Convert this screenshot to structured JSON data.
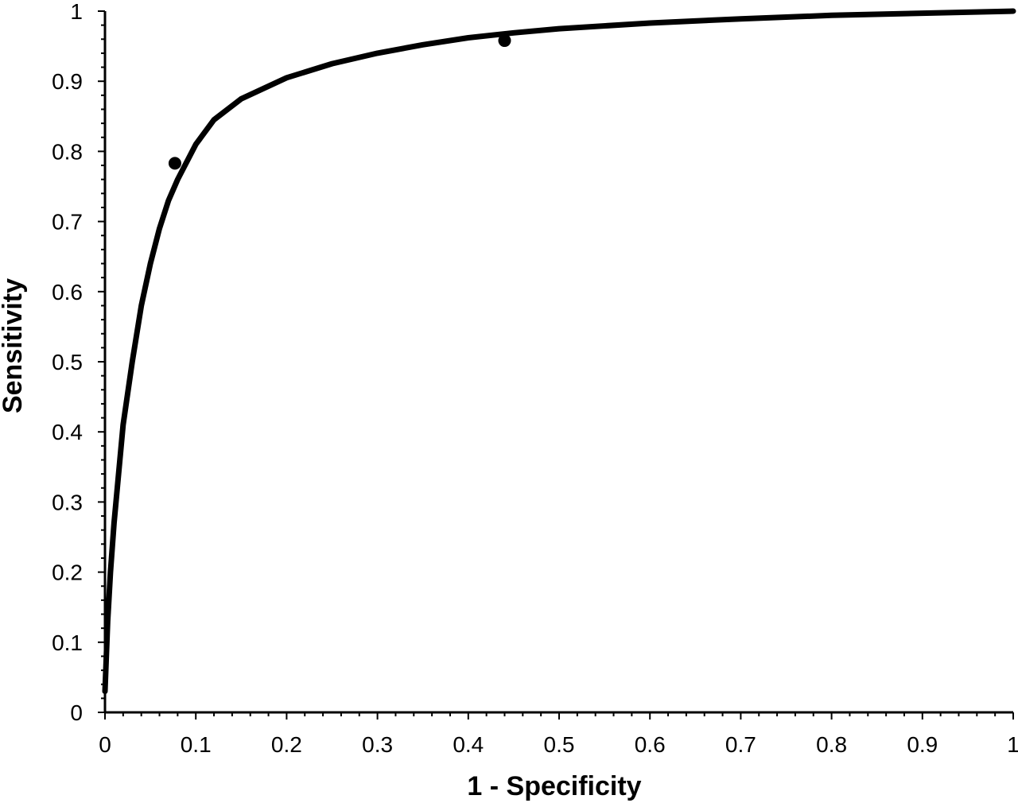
{
  "chart_data": {
    "type": "line",
    "title": "",
    "xlabel": "1 - Specificity",
    "ylabel": "Sensitivity",
    "xlim": [
      0,
      1
    ],
    "ylim": [
      0,
      1
    ],
    "grid": false,
    "legend": "none",
    "x_ticks": [
      "0",
      "0.1",
      "0.2",
      "0.3",
      "0.4",
      "0.5",
      "0.6",
      "0.7",
      "0.8",
      "0.9",
      "1"
    ],
    "y_ticks": [
      "0",
      "0.1",
      "0.2",
      "0.3",
      "0.4",
      "0.5",
      "0.6",
      "0.7",
      "0.8",
      "0.9",
      "1"
    ],
    "series": [
      {
        "type": "line",
        "x": [
          0.0,
          0.003,
          0.006,
          0.01,
          0.015,
          0.02,
          0.03,
          0.04,
          0.05,
          0.06,
          0.07,
          0.08,
          0.1,
          0.12,
          0.15,
          0.2,
          0.25,
          0.3,
          0.35,
          0.4,
          0.45,
          0.5,
          0.6,
          0.7,
          0.8,
          0.9,
          1.0
        ],
        "y": [
          0.03,
          0.13,
          0.2,
          0.27,
          0.34,
          0.41,
          0.5,
          0.58,
          0.64,
          0.69,
          0.73,
          0.76,
          0.81,
          0.845,
          0.875,
          0.905,
          0.925,
          0.94,
          0.952,
          0.962,
          0.969,
          0.975,
          0.983,
          0.989,
          0.994,
          0.997,
          1.0
        ]
      },
      {
        "type": "scatter",
        "x": [
          0.077,
          0.44
        ],
        "y": [
          0.783,
          0.958
        ]
      }
    ],
    "colors": {
      "line": "#000000",
      "points": "#000000",
      "axis": "#000000"
    }
  }
}
